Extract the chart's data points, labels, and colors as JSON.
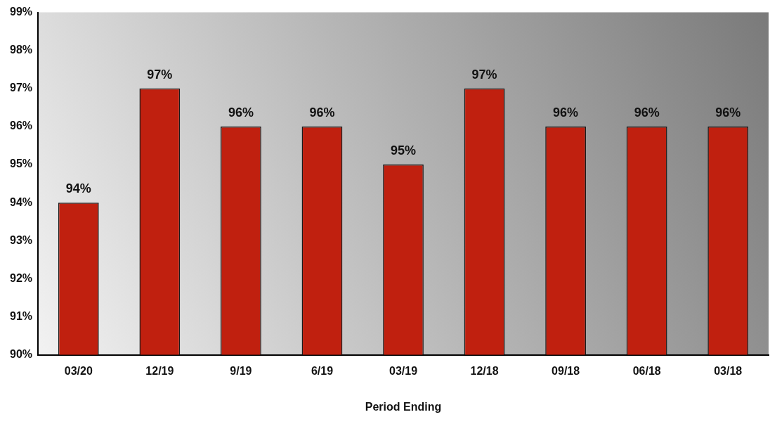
{
  "chart_data": {
    "type": "bar",
    "xlabel": "Period Ending",
    "categories": [
      "03/20",
      "12/19",
      "9/19",
      "6/19",
      "03/19",
      "12/18",
      "09/18",
      "06/18",
      "03/18"
    ],
    "values": [
      94,
      97,
      96,
      96,
      95,
      97,
      96,
      96,
      96
    ],
    "value_labels": [
      "94%",
      "97%",
      "96%",
      "96%",
      "95%",
      "97%",
      "96%",
      "96%",
      "96%"
    ],
    "color": "#c0200f",
    "ylim": [
      90,
      99
    ],
    "yticks": [
      {
        "value": 90,
        "label": "90%"
      },
      {
        "value": 91,
        "label": "91%"
      },
      {
        "value": 92,
        "label": "92%"
      },
      {
        "value": 93,
        "label": "93%"
      },
      {
        "value": 94,
        "label": "94%"
      },
      {
        "value": 95,
        "label": "95%"
      },
      {
        "value": 96,
        "label": "96%"
      },
      {
        "value": 97,
        "label": "97%"
      },
      {
        "value": 98,
        "label": "98%"
      },
      {
        "value": 99,
        "label": "99%"
      }
    ],
    "grid": false,
    "legend": false
  }
}
